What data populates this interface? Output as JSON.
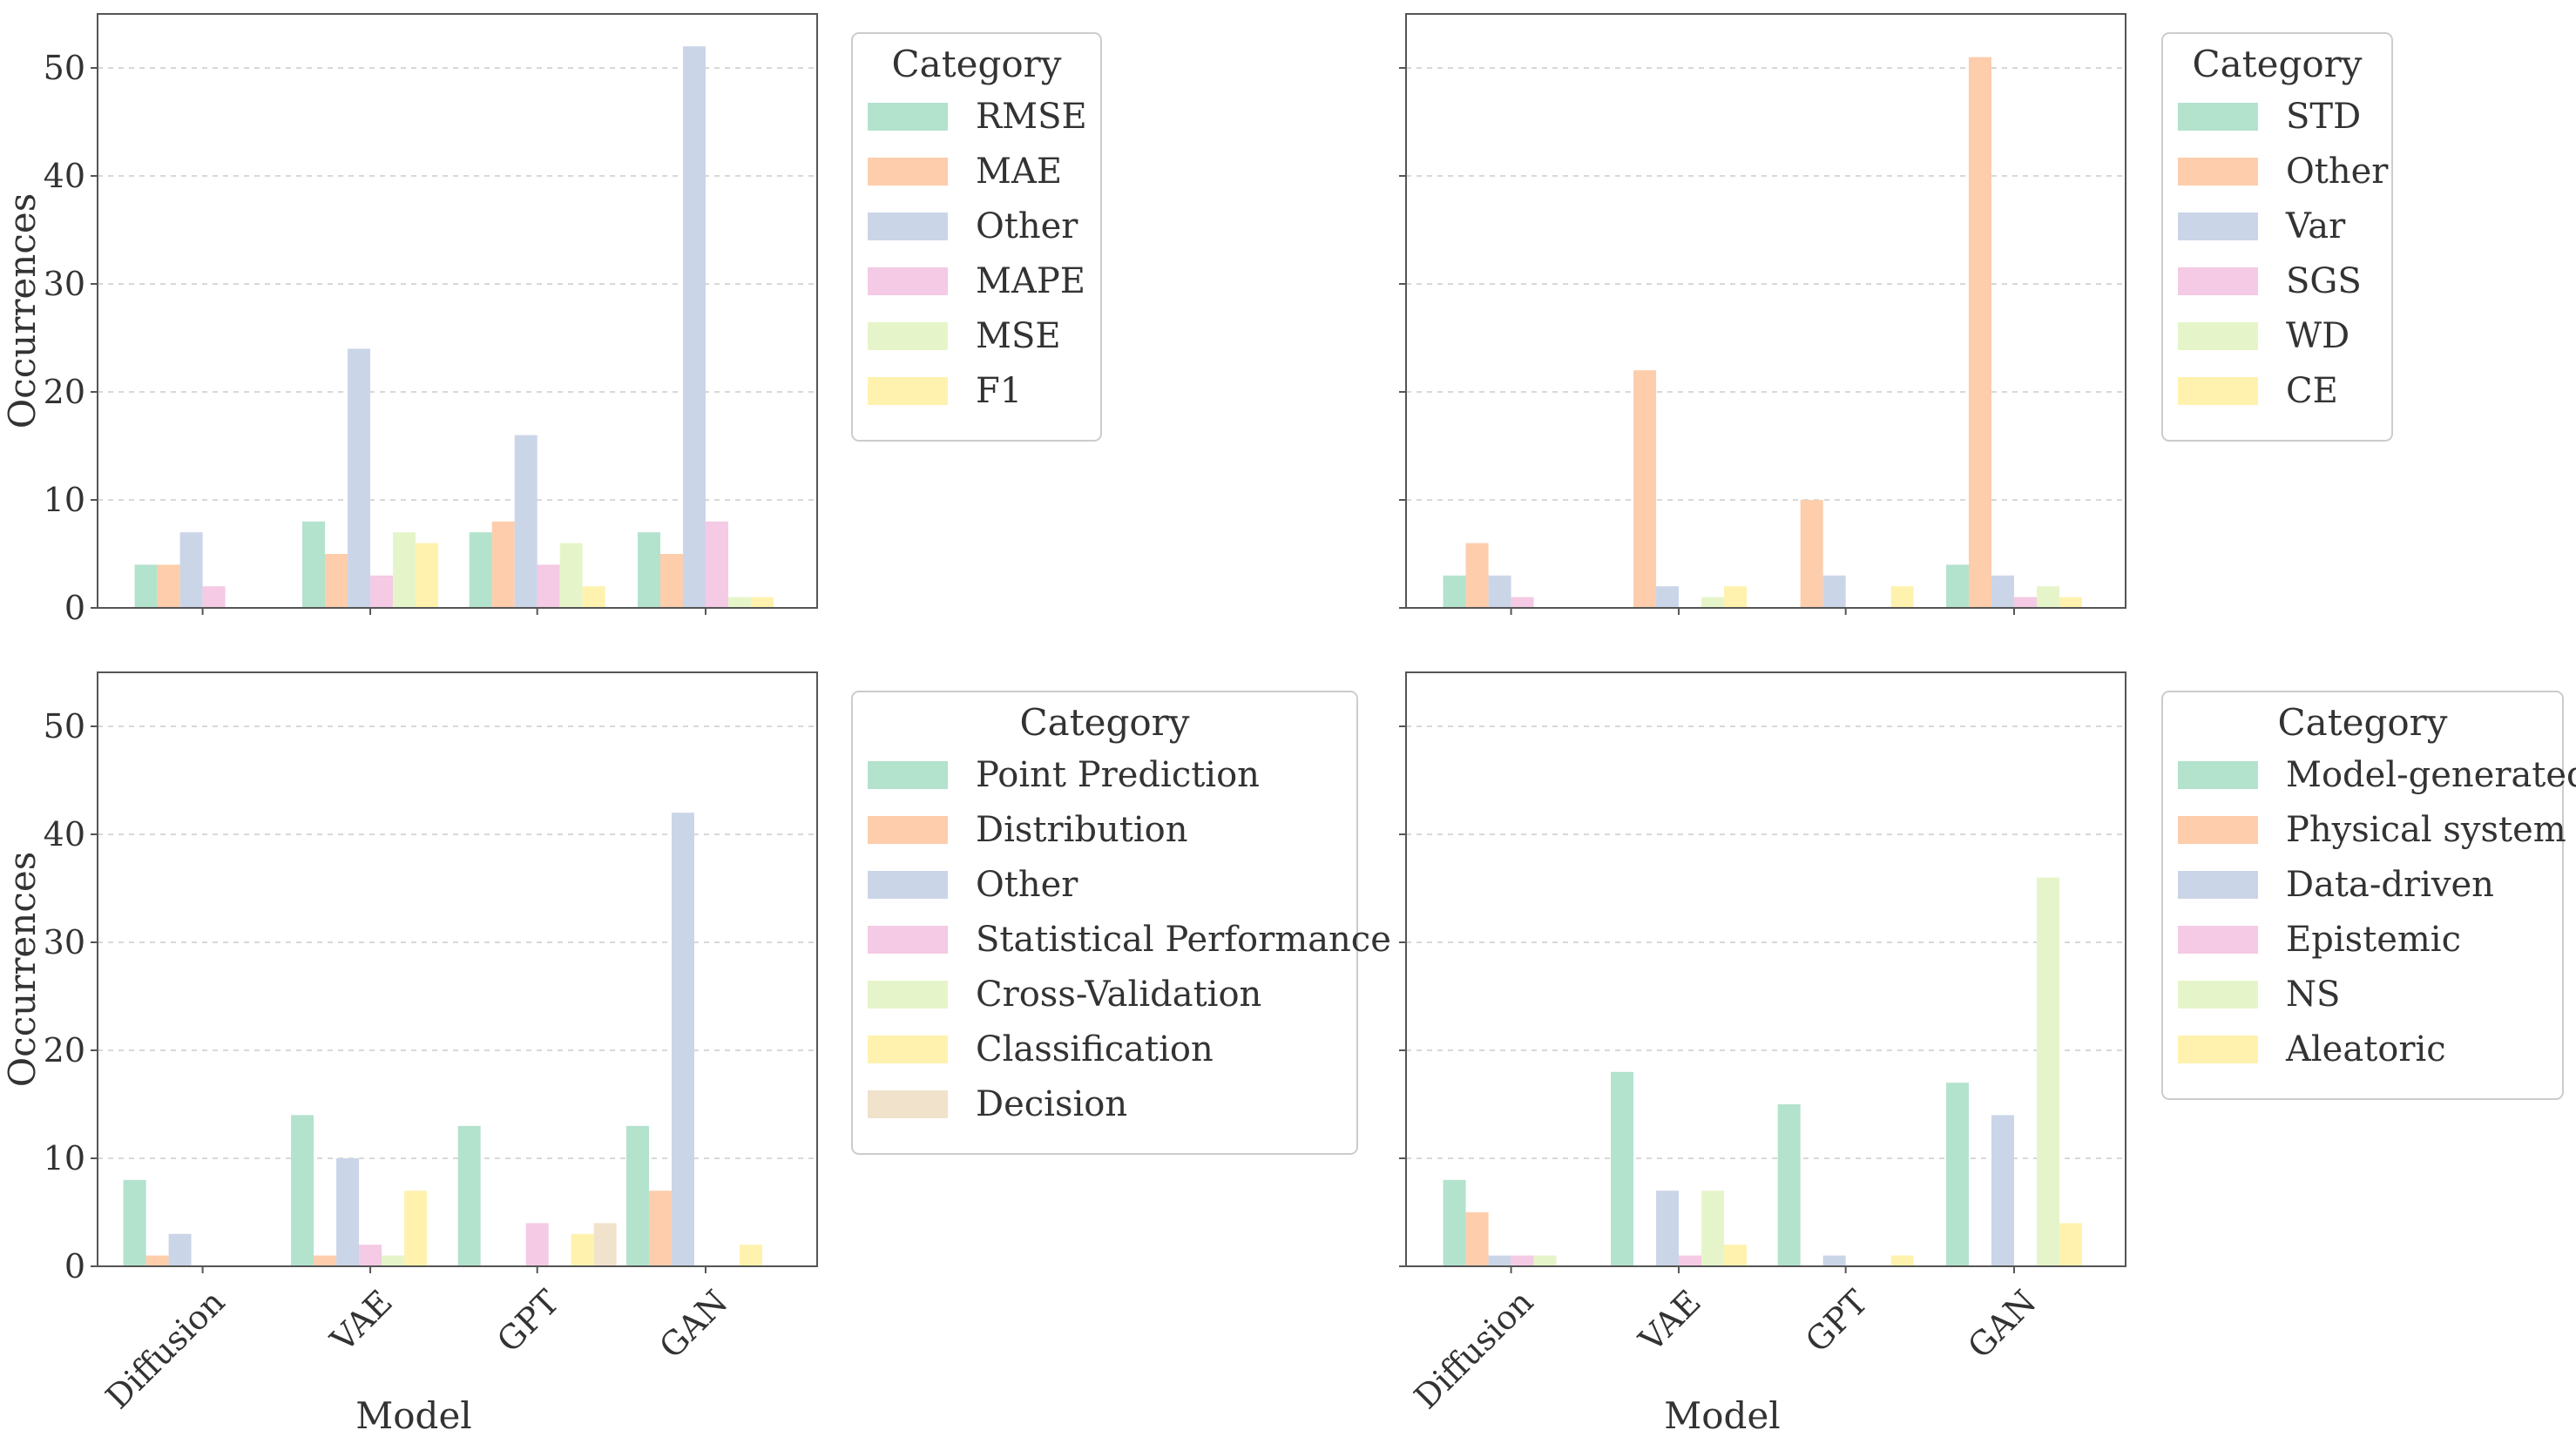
{
  "colors": [
    "#b3e2cd",
    "#fdcdac",
    "#cbd5e8",
    "#f4cae4",
    "#e6f5c9",
    "#fff2ae",
    "#f1e2cc"
  ],
  "chart_data": [
    {
      "type": "bar",
      "categories": [
        "Diffusion",
        "VAE",
        "GPT",
        "GAN"
      ],
      "ylabel": "Occurrences",
      "xlabel": "",
      "ylim": [
        0,
        55
      ],
      "yticks": [
        0,
        10,
        20,
        30,
        40,
        50
      ],
      "legend_title": "Category",
      "series": [
        {
          "name": "RMSE",
          "values": [
            4,
            8,
            7,
            7
          ]
        },
        {
          "name": "MAE",
          "values": [
            4,
            5,
            8,
            5
          ]
        },
        {
          "name": "Other",
          "values": [
            7,
            24,
            16,
            52
          ]
        },
        {
          "name": "MAPE",
          "values": [
            2,
            3,
            4,
            8
          ]
        },
        {
          "name": "MSE",
          "values": [
            0,
            7,
            6,
            1
          ]
        },
        {
          "name": "F1",
          "values": [
            0,
            6,
            2,
            1
          ]
        }
      ]
    },
    {
      "type": "bar",
      "categories": [
        "Diffusion",
        "VAE",
        "GPT",
        "GAN"
      ],
      "ylabel": "",
      "xlabel": "",
      "ylim": [
        0,
        55
      ],
      "yticks": [
        0,
        10,
        20,
        30,
        40,
        50
      ],
      "legend_title": "Category",
      "series": [
        {
          "name": "STD",
          "values": [
            3,
            0,
            0,
            4
          ]
        },
        {
          "name": "Other",
          "values": [
            6,
            22,
            10,
            51
          ]
        },
        {
          "name": "Var",
          "values": [
            3,
            2,
            3,
            3
          ]
        },
        {
          "name": "SGS",
          "values": [
            1,
            0,
            0,
            1
          ]
        },
        {
          "name": "WD",
          "values": [
            0,
            1,
            0,
            2
          ]
        },
        {
          "name": "CE",
          "values": [
            0,
            2,
            2,
            1
          ]
        }
      ]
    },
    {
      "type": "bar",
      "categories": [
        "Diffusion",
        "VAE",
        "GPT",
        "GAN"
      ],
      "ylabel": "Occurrences",
      "xlabel": "Model",
      "ylim": [
        0,
        55
      ],
      "yticks": [
        0,
        10,
        20,
        30,
        40,
        50
      ],
      "legend_title": "Category",
      "series": [
        {
          "name": "Point Prediction",
          "values": [
            8,
            14,
            13,
            13
          ]
        },
        {
          "name": "Distribution",
          "values": [
            1,
            1,
            0,
            7
          ]
        },
        {
          "name": "Other",
          "values": [
            3,
            10,
            0,
            42
          ]
        },
        {
          "name": "Statistical Performance",
          "values": [
            0,
            2,
            4,
            0
          ]
        },
        {
          "name": "Cross-Validation",
          "values": [
            0,
            1,
            0,
            0
          ]
        },
        {
          "name": "Classification",
          "values": [
            0,
            7,
            3,
            2
          ]
        },
        {
          "name": "Decision",
          "values": [
            0,
            0,
            4,
            0
          ]
        }
      ]
    },
    {
      "type": "bar",
      "categories": [
        "Diffusion",
        "VAE",
        "GPT",
        "GAN"
      ],
      "ylabel": "",
      "xlabel": "Model",
      "ylim": [
        0,
        55
      ],
      "yticks": [
        0,
        10,
        20,
        30,
        40,
        50
      ],
      "legend_title": "Category",
      "series": [
        {
          "name": "Model-generated",
          "values": [
            8,
            18,
            15,
            17
          ]
        },
        {
          "name": "Physical system",
          "values": [
            5,
            0,
            0,
            0
          ]
        },
        {
          "name": "Data-driven",
          "values": [
            1,
            7,
            1,
            14
          ]
        },
        {
          "name": "Epistemic",
          "values": [
            1,
            1,
            0,
            0
          ]
        },
        {
          "name": "NS",
          "values": [
            1,
            7,
            0,
            36
          ]
        },
        {
          "name": "Aleatoric",
          "values": [
            0,
            2,
            1,
            4
          ]
        }
      ]
    }
  ]
}
